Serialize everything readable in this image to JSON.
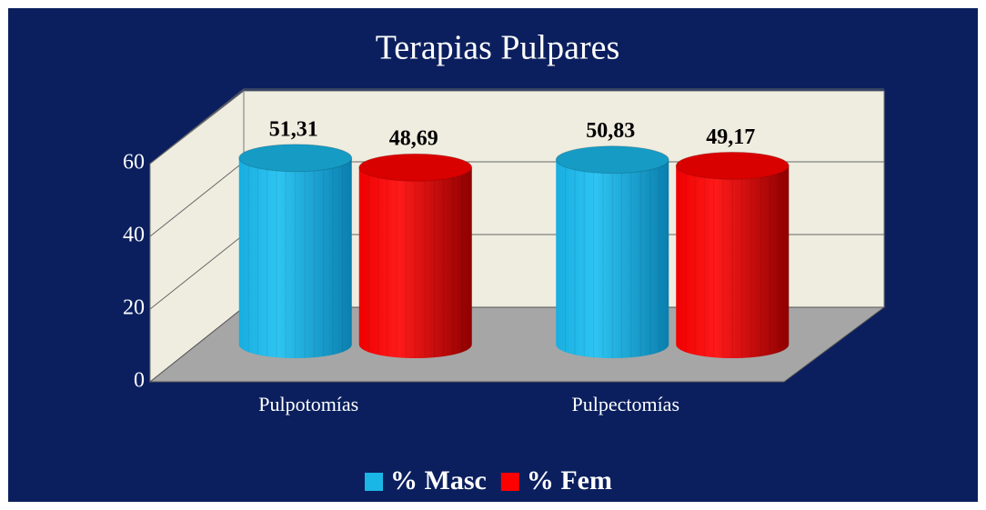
{
  "chart_data": {
    "type": "bar3d",
    "title": "Terapias Pulpares",
    "categories": [
      "Pulpotomías",
      "Pulpectomías"
    ],
    "series": [
      {
        "name": "% Masc",
        "color": "#1ab6e6",
        "values": [
          51.31,
          50.83
        ],
        "value_labels": [
          "51,31",
          "50,83"
        ]
      },
      {
        "name": "% Fem",
        "color": "#ff0000",
        "values": [
          48.69,
          49.17
        ],
        "value_labels": [
          "48,69",
          "49,17"
        ]
      }
    ],
    "ylim": [
      0,
      60
    ],
    "yticks": [
      0,
      20,
      40,
      60
    ],
    "grid": true,
    "legend": "bottom"
  }
}
